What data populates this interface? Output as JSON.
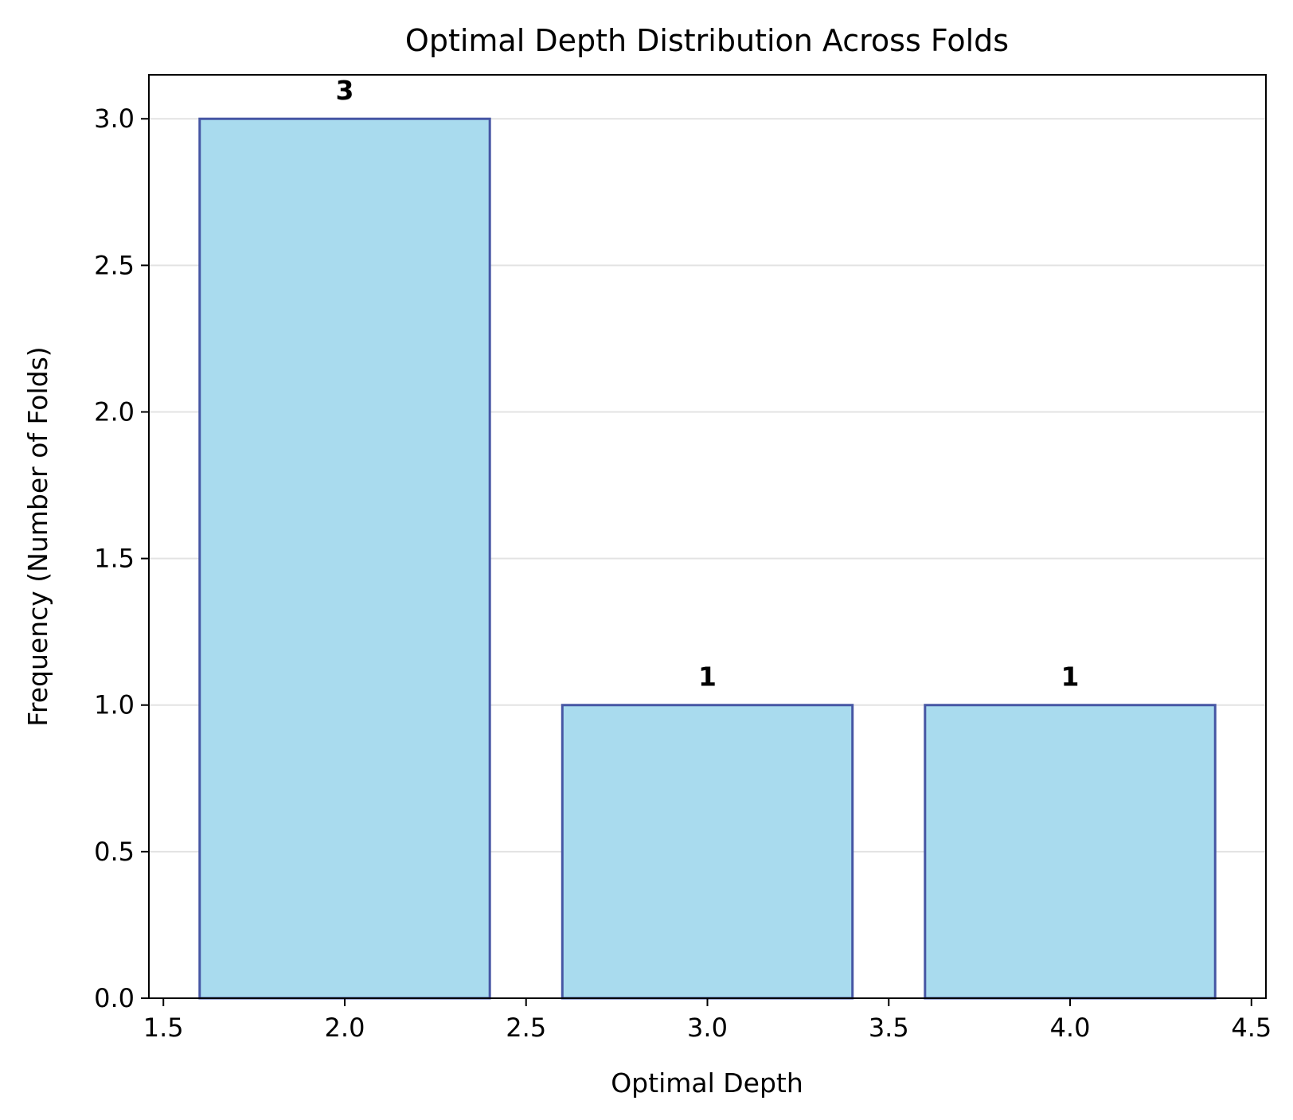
{
  "chart_data": {
    "type": "bar",
    "title": "Optimal Depth Distribution Across Folds",
    "xlabel": "Optimal Depth",
    "ylabel": "Frequency (Number of Folds)",
    "x": [
      2.0,
      3.0,
      4.0
    ],
    "values": [
      3,
      1,
      1
    ],
    "data_labels": [
      "3",
      "1",
      "1"
    ],
    "bar_width": 0.8,
    "xlim": [
      1.46,
      4.54
    ],
    "ylim": [
      0,
      3.15
    ],
    "xticks": [
      1.5,
      2.0,
      2.5,
      3.0,
      3.5,
      4.0,
      4.5
    ],
    "xtick_labels": [
      "1.5",
      "2.0",
      "2.5",
      "3.0",
      "3.5",
      "4.0",
      "4.5"
    ],
    "yticks": [
      0.0,
      0.5,
      1.0,
      1.5,
      2.0,
      2.5,
      3.0
    ],
    "ytick_labels": [
      "0.0",
      "0.5",
      "1.0",
      "1.5",
      "2.0",
      "2.5",
      "3.0"
    ],
    "grid": "y",
    "colors": {
      "bar_fill": "#a9dbee",
      "bar_edge": "#4656a4",
      "grid": "#e3e3e3",
      "axis": "#000000"
    }
  }
}
